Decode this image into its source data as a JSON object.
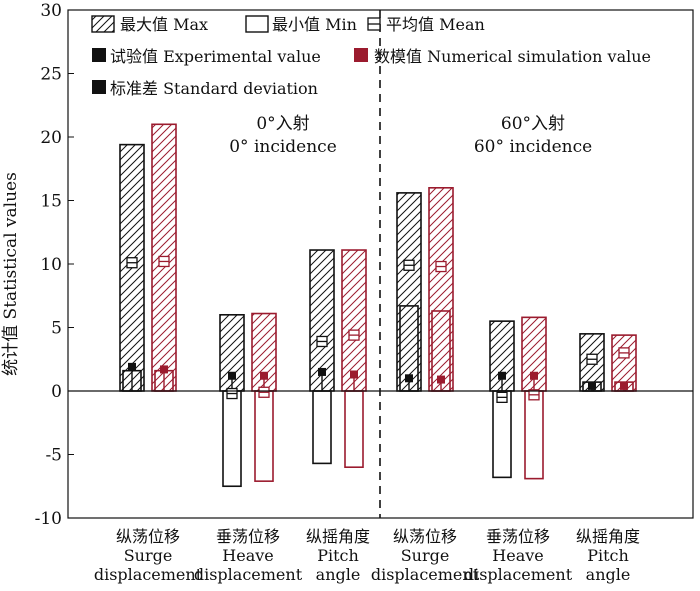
{
  "chart_data": {
    "type": "bar",
    "ylabel": "统计值 Statistical values",
    "ylim": [
      -10,
      30
    ],
    "yticks": [
      -10,
      -5,
      0,
      5,
      10,
      15,
      20,
      25,
      30
    ],
    "grid": false,
    "legend_position": "top-left",
    "categories": [
      {
        "cn": "纵荡位移",
        "en1": "Surge",
        "en2": "displacement"
      },
      {
        "cn": "垂荡位移",
        "en1": "Heave",
        "en2": "displacement"
      },
      {
        "cn": "纵摇角度",
        "en1": "Pitch",
        "en2": "angle"
      },
      {
        "cn": "纵荡位移",
        "en1": "Surge",
        "en2": "displacement"
      },
      {
        "cn": "垂荡位移",
        "en1": "Heave",
        "en2": "displacement"
      },
      {
        "cn": "纵摇角度",
        "en1": "Pitch",
        "en2": "angle"
      }
    ],
    "groups": [
      {
        "cn": "0°入射",
        "en": "0° incidence",
        "categories": [
          0,
          1,
          2
        ]
      },
      {
        "cn": "60°入射",
        "en": "60° incidence",
        "categories": [
          3,
          4,
          5
        ]
      }
    ],
    "series": [
      {
        "name": "试验值 Experimental value",
        "color": "#111111",
        "max": [
          19.4,
          6.0,
          11.1,
          15.6,
          5.5,
          4.5
        ],
        "min": [
          1.6,
          -7.5,
          -5.7,
          6.7,
          -6.8,
          0.7
        ],
        "mean": [
          10.1,
          -0.2,
          3.9,
          9.9,
          -0.5,
          2.5
        ],
        "std": [
          1.9,
          1.2,
          1.5,
          1.0,
          1.2,
          0.4
        ]
      },
      {
        "name": "数模值 Numerical simulation value",
        "color": "#9b1b2e",
        "max": [
          21.0,
          6.1,
          11.1,
          16.0,
          5.8,
          4.4
        ],
        "min": [
          1.6,
          -7.1,
          -6.0,
          6.3,
          -6.9,
          0.7
        ],
        "mean": [
          10.2,
          -0.1,
          4.4,
          9.8,
          -0.3,
          3.0
        ],
        "std": [
          1.7,
          1.2,
          1.3,
          0.9,
          1.2,
          0.4
        ]
      }
    ],
    "legend": [
      {
        "key": "max",
        "label": "最大值 Max"
      },
      {
        "key": "min",
        "label": "最小值 Min"
      },
      {
        "key": "mean",
        "label": "平均值 Mean"
      },
      {
        "key": "experimental",
        "label": "试验值 Experimental value"
      },
      {
        "key": "numerical",
        "label": "数模值 Numerical simulation value"
      },
      {
        "key": "std",
        "label": "标准差 Standard deviation"
      }
    ]
  }
}
